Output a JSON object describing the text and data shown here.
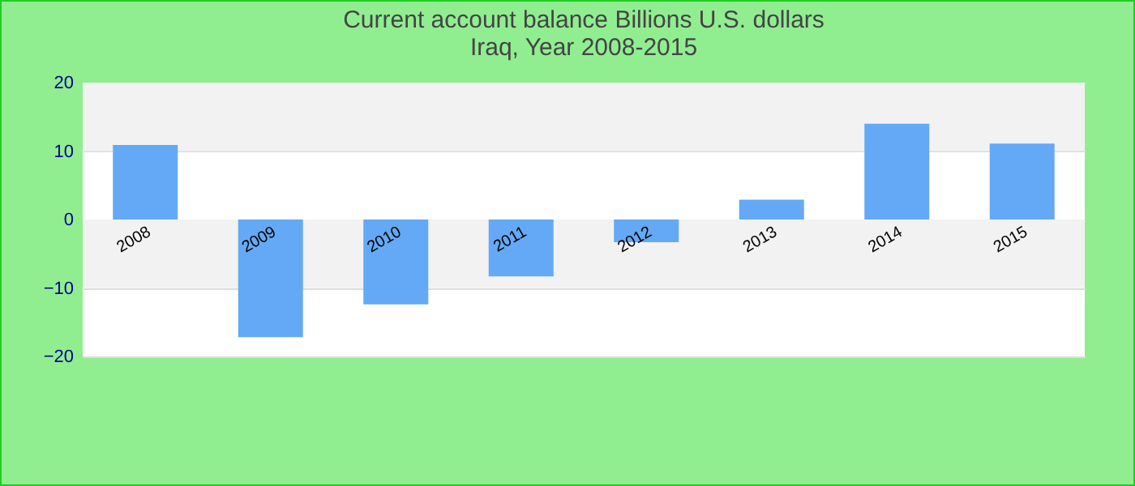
{
  "chart_data": {
    "type": "bar",
    "title": "Current account balance Billions U.S. dollars",
    "subtitle": "Iraq, Year 2008-2015",
    "categories": [
      "2008",
      "2009",
      "2010",
      "2011",
      "2012",
      "2013",
      "2014",
      "2015"
    ],
    "values": [
      10.9,
      -17.2,
      -12.4,
      -8.3,
      -3.3,
      2.9,
      14.0,
      11.1
    ],
    "color": "#64a9f5",
    "ylim": [
      -20,
      20
    ],
    "yticks": [
      -20,
      -10,
      0,
      10,
      20
    ],
    "bands": [
      {
        "axis": "y",
        "from": 10,
        "to": 20,
        "color": "#f2f2f2"
      },
      {
        "axis": "y",
        "from": -10,
        "to": 0,
        "color": "#f2f2f2"
      }
    ],
    "grid": "y"
  }
}
